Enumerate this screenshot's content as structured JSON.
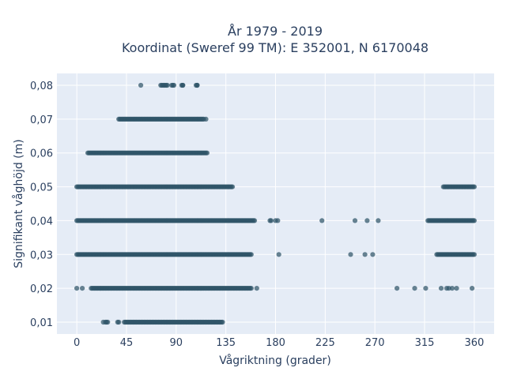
{
  "chart_data": {
    "type": "scatter",
    "title_line1": "År 1979 - 2019",
    "title_line2": "Koordinat (Sweref 99 TM): E 352001, N 6170048",
    "xlabel": "Vågriktning (grader)",
    "ylabel": "Signifikant våghöjd (m)",
    "xlim": [
      -18,
      378
    ],
    "ylim": [
      0.0065,
      0.0835
    ],
    "xticks": [
      0,
      45,
      90,
      135,
      180,
      225,
      270,
      315,
      360
    ],
    "xtick_labels": [
      "0",
      "45",
      "90",
      "135",
      "180",
      "225",
      "270",
      "315",
      "360"
    ],
    "yticks": [
      0.01,
      0.02,
      0.03,
      0.04,
      0.05,
      0.06,
      0.07,
      0.08
    ],
    "ytick_labels": [
      "0,01",
      "0,02",
      "0,03",
      "0,04",
      "0,05",
      "0,06",
      "0,07",
      "0,08"
    ],
    "grid": true,
    "background_color": "#e5ecf6",
    "marker_color": "#2f5468",
    "rows": [
      {
        "y": 0.01,
        "segments": [
          [
            26,
            28
          ],
          [
            37,
            38
          ],
          [
            43,
            130
          ],
          [
            131,
            132
          ]
        ],
        "points": [
          24
        ]
      },
      {
        "y": 0.02,
        "segments": [
          [
            13,
            158
          ]
        ],
        "points": [
          0,
          5,
          163,
          290,
          306,
          316,
          330,
          335,
          337,
          340,
          344,
          358
        ]
      },
      {
        "y": 0.03,
        "segments": [
          [
            0,
            158
          ],
          [
            326,
            360
          ]
        ],
        "points": [
          183,
          248,
          261,
          268
        ]
      },
      {
        "y": 0.04,
        "segments": [
          [
            0,
            161
          ],
          [
            318,
            360
          ]
        ],
        "points": [
          175,
          176,
          180,
          182,
          222,
          252,
          263,
          273
        ]
      },
      {
        "y": 0.05,
        "segments": [
          [
            0,
            141
          ],
          [
            332,
            360
          ]
        ],
        "points": []
      },
      {
        "y": 0.06,
        "segments": [
          [
            10,
            118
          ]
        ],
        "points": []
      },
      {
        "y": 0.07,
        "segments": [
          [
            38,
            115
          ]
        ],
        "points": [
          117
        ]
      },
      {
        "y": 0.08,
        "segments": [
          [
            76,
            82
          ],
          [
            86,
            88
          ],
          [
            95,
            96
          ],
          [
            108,
            109
          ]
        ],
        "points": [
          58,
          96,
          109
        ]
      }
    ]
  }
}
